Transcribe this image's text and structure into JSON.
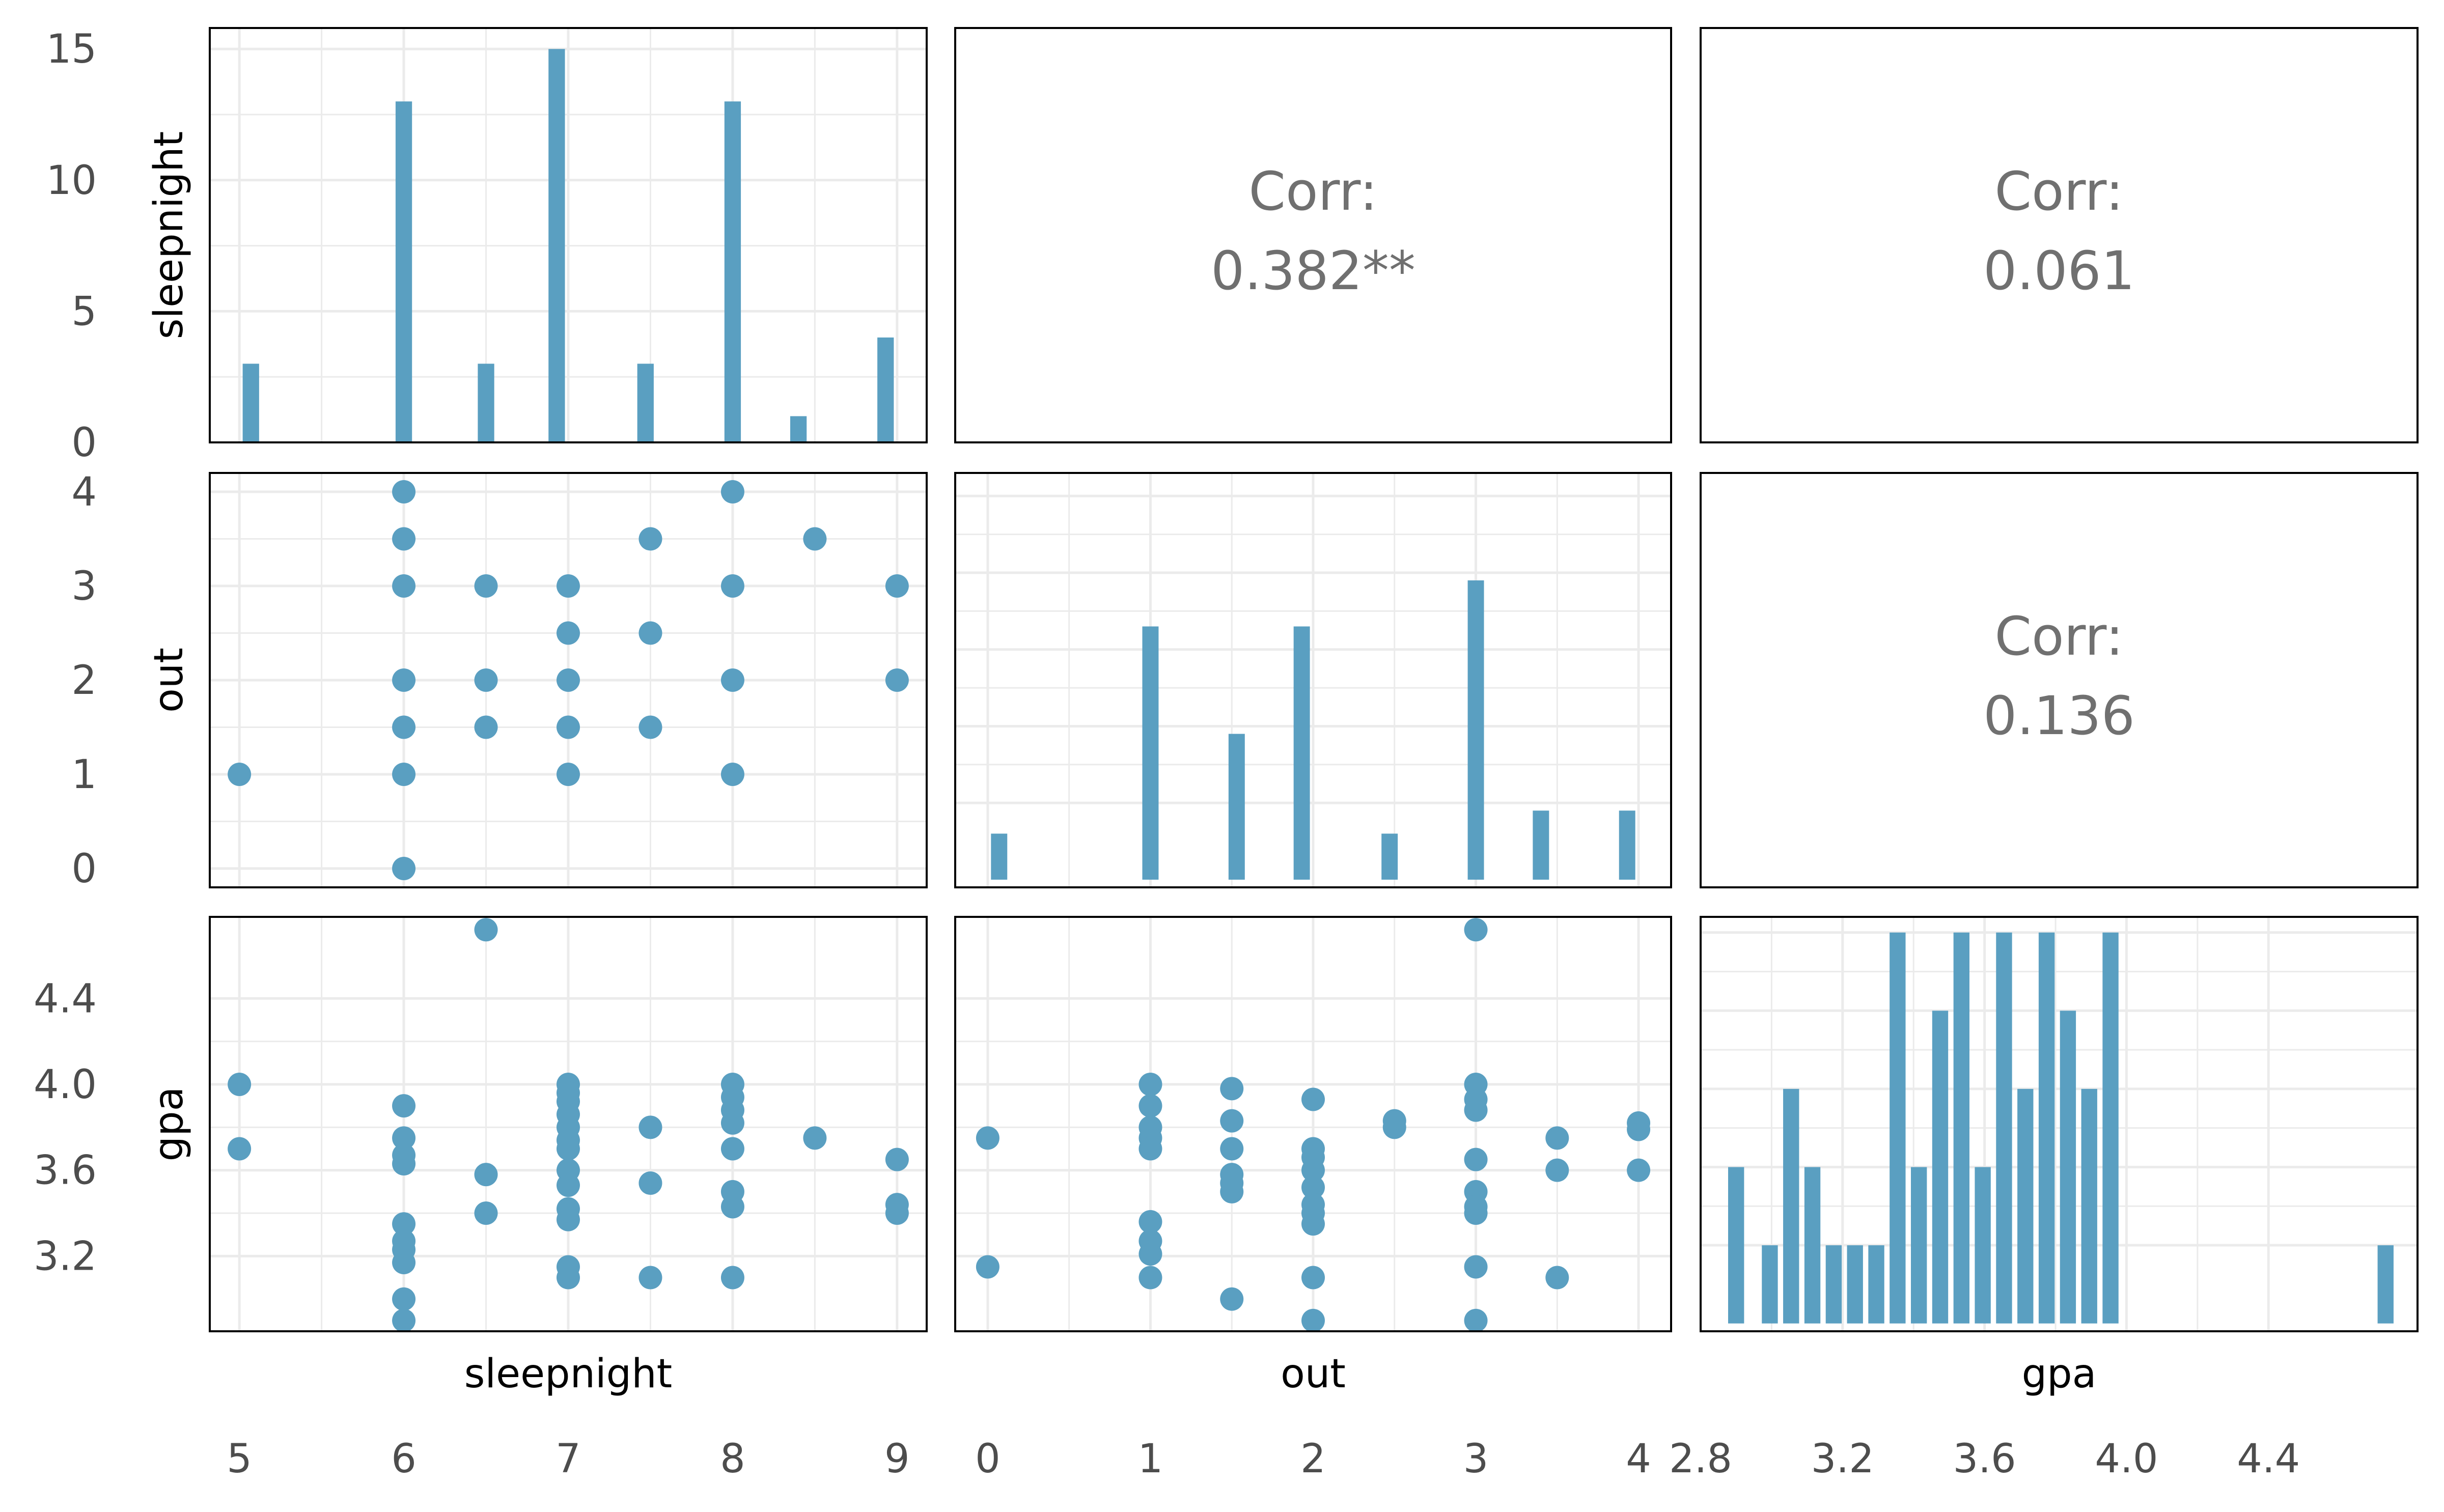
{
  "chart_data": {
    "type": "pairs",
    "variables": [
      "sleepnight",
      "out",
      "gpa"
    ],
    "axes": {
      "sleepnight": {
        "range": [
          4.82,
          9.18
        ],
        "ticks": [
          5,
          6,
          7,
          8,
          9
        ],
        "tick_labels": [
          "5",
          "6",
          "7",
          "8",
          "9"
        ]
      },
      "out": {
        "range": [
          -0.2,
          4.2
        ],
        "ticks": [
          0,
          1,
          2,
          3,
          4
        ],
        "tick_labels": [
          "0",
          "1",
          "2",
          "3",
          "4"
        ]
      },
      "gpa": {
        "range": [
          2.8,
          4.82
        ],
        "ticks": [
          2.8,
          3.2,
          3.6,
          4.0,
          4.4
        ],
        "tick_labels": [
          "2.8",
          "3.2",
          "3.6",
          "4.0",
          "4.4"
        ],
        "ylim": [
          2.85,
          4.78
        ],
        "yticks": [
          3.2,
          3.6,
          4.0,
          4.4
        ],
        "ytick_labels": [
          "3.2",
          "3.6",
          "4.0",
          "4.4"
        ]
      }
    },
    "correlations": [
      {
        "row": 0,
        "col": 1,
        "label": "Corr:",
        "value": "0.382**"
      },
      {
        "row": 0,
        "col": 2,
        "label": "Corr:",
        "value": "0.061"
      },
      {
        "row": 1,
        "col": 2,
        "label": "Corr:",
        "value": "0.136"
      }
    ],
    "histograms": {
      "sleepnight": {
        "yrange": [
          0,
          15.8
        ],
        "yticks": [
          0,
          5,
          10,
          15
        ],
        "ytick_labels": [
          "0",
          "5",
          "10",
          "15"
        ],
        "bar_width": 0.1,
        "bins": [
          {
            "x": 5.07,
            "count": 3
          },
          {
            "x": 6.0,
            "count": 13
          },
          {
            "x": 6.5,
            "count": 3
          },
          {
            "x": 6.93,
            "count": 15
          },
          {
            "x": 7.47,
            "count": 3
          },
          {
            "x": 8.0,
            "count": 13
          },
          {
            "x": 8.4,
            "count": 1
          },
          {
            "x": 8.93,
            "count": 4
          }
        ]
      },
      "out": {
        "yrange": [
          -0.1,
          5.3
        ],
        "yticks": [
          1,
          2,
          3,
          4,
          5
        ],
        "bar_width": 0.1,
        "bins": [
          {
            "x": 0.07,
            "count": 0.6
          },
          {
            "x": 1.0,
            "count": 3.3
          },
          {
            "x": 1.53,
            "count": 1.9
          },
          {
            "x": 1.93,
            "count": 3.3
          },
          {
            "x": 2.47,
            "count": 0.6
          },
          {
            "x": 3.0,
            "count": 3.9
          },
          {
            "x": 3.4,
            "count": 0.9
          },
          {
            "x": 3.93,
            "count": 0.9
          }
        ]
      },
      "gpa": {
        "yrange": [
          -0.1,
          5.2
        ],
        "yticks": [
          1,
          2,
          3,
          4,
          5
        ],
        "bar_width": 0.045,
        "bins": [
          {
            "x": 2.9,
            "count": 2
          },
          {
            "x": 2.995,
            "count": 1
          },
          {
            "x": 3.055,
            "count": 3
          },
          {
            "x": 3.115,
            "count": 2
          },
          {
            "x": 3.175,
            "count": 1
          },
          {
            "x": 3.235,
            "count": 1
          },
          {
            "x": 3.295,
            "count": 1
          },
          {
            "x": 3.355,
            "count": 5
          },
          {
            "x": 3.415,
            "count": 2
          },
          {
            "x": 3.475,
            "count": 4
          },
          {
            "x": 3.535,
            "count": 5
          },
          {
            "x": 3.595,
            "count": 2
          },
          {
            "x": 3.655,
            "count": 5
          },
          {
            "x": 3.715,
            "count": 3
          },
          {
            "x": 3.775,
            "count": 5
          },
          {
            "x": 3.835,
            "count": 4
          },
          {
            "x": 3.895,
            "count": 3
          },
          {
            "x": 3.955,
            "count": 5
          },
          {
            "x": 4.73,
            "count": 1
          }
        ]
      }
    },
    "scatter": {
      "out_vs_sleepnight": [
        [
          5,
          1
        ],
        [
          6,
          4
        ],
        [
          6,
          3.5
        ],
        [
          6,
          3
        ],
        [
          6,
          2
        ],
        [
          6,
          1.5
        ],
        [
          6,
          1
        ],
        [
          6,
          0
        ],
        [
          6.5,
          3
        ],
        [
          6.5,
          2
        ],
        [
          6.5,
          1.5
        ],
        [
          7,
          3
        ],
        [
          7,
          2.5
        ],
        [
          7,
          2
        ],
        [
          7,
          1.5
        ],
        [
          7,
          1
        ],
        [
          7.5,
          3.5
        ],
        [
          7.5,
          2.5
        ],
        [
          7.5,
          1.5
        ],
        [
          8,
          4
        ],
        [
          8,
          3
        ],
        [
          8,
          2
        ],
        [
          8,
          1
        ],
        [
          8.5,
          3.5
        ],
        [
          9,
          3
        ],
        [
          9,
          2
        ]
      ],
      "gpa_vs_sleepnight": [
        [
          5,
          4.0
        ],
        [
          5,
          3.7
        ],
        [
          6,
          3.9
        ],
        [
          6,
          3.75
        ],
        [
          6,
          3.67
        ],
        [
          6,
          3.63
        ],
        [
          6,
          3.35
        ],
        [
          6,
          3.27
        ],
        [
          6,
          3.23
        ],
        [
          6,
          3.17
        ],
        [
          6,
          3.0
        ],
        [
          6,
          2.9
        ],
        [
          6.5,
          4.72
        ],
        [
          6.5,
          3.58
        ],
        [
          6.5,
          3.4
        ],
        [
          7,
          4.0
        ],
        [
          7,
          3.96
        ],
        [
          7,
          3.92
        ],
        [
          7,
          3.86
        ],
        [
          7,
          3.8
        ],
        [
          7,
          3.74
        ],
        [
          7,
          3.7
        ],
        [
          7,
          3.6
        ],
        [
          7,
          3.53
        ],
        [
          7,
          3.42
        ],
        [
          7,
          3.37
        ],
        [
          7,
          3.15
        ],
        [
          7,
          3.1
        ],
        [
          7.5,
          3.8
        ],
        [
          7.5,
          3.54
        ],
        [
          7.5,
          3.1
        ],
        [
          8,
          4.0
        ],
        [
          8,
          3.94
        ],
        [
          8,
          3.88
        ],
        [
          8,
          3.82
        ],
        [
          8,
          3.7
        ],
        [
          8,
          3.5
        ],
        [
          8,
          3.43
        ],
        [
          8,
          3.1
        ],
        [
          8.5,
          3.75
        ],
        [
          9,
          3.65
        ],
        [
          9,
          3.44
        ],
        [
          9,
          3.4
        ]
      ],
      "gpa_vs_out": [
        [
          0,
          3.75
        ],
        [
          0,
          3.15
        ],
        [
          1,
          4.0
        ],
        [
          1,
          3.9
        ],
        [
          1,
          3.8
        ],
        [
          1,
          3.75
        ],
        [
          1,
          3.7
        ],
        [
          1,
          3.36
        ],
        [
          1,
          3.27
        ],
        [
          1,
          3.21
        ],
        [
          1,
          3.1
        ],
        [
          1.5,
          3.98
        ],
        [
          1.5,
          3.83
        ],
        [
          1.5,
          3.7
        ],
        [
          1.5,
          3.58
        ],
        [
          1.5,
          3.54
        ],
        [
          1.5,
          3.5
        ],
        [
          1.5,
          3.0
        ],
        [
          2,
          3.93
        ],
        [
          2,
          3.7
        ],
        [
          2,
          3.66
        ],
        [
          2,
          3.6
        ],
        [
          2,
          3.52
        ],
        [
          2,
          3.44
        ],
        [
          2,
          3.4
        ],
        [
          2,
          3.35
        ],
        [
          2,
          3.1
        ],
        [
          2,
          2.9
        ],
        [
          2.5,
          3.83
        ],
        [
          2.5,
          3.8
        ],
        [
          3,
          4.72
        ],
        [
          3,
          4.0
        ],
        [
          3,
          3.93
        ],
        [
          3,
          3.88
        ],
        [
          3,
          3.65
        ],
        [
          3,
          3.5
        ],
        [
          3,
          3.43
        ],
        [
          3,
          3.4
        ],
        [
          3,
          3.15
        ],
        [
          3,
          2.9
        ],
        [
          3.5,
          3.75
        ],
        [
          3.5,
          3.6
        ],
        [
          3.5,
          3.1
        ],
        [
          4,
          3.82
        ],
        [
          4,
          3.79
        ],
        [
          4,
          3.6
        ]
      ]
    },
    "colors": {
      "marks": "#5a9fc1",
      "grid": "#ebebeb",
      "panel_border": "#000000",
      "tick_text": "#4d4d4d",
      "corr_text": "#707070",
      "label_text": "#000000"
    }
  }
}
